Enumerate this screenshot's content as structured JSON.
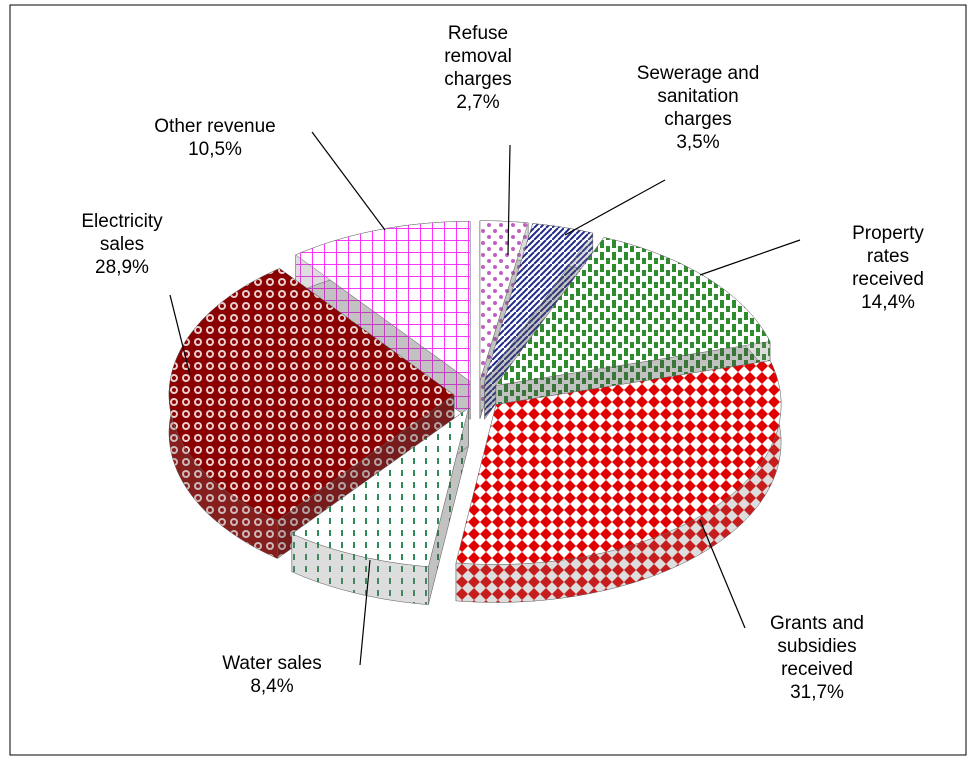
{
  "chart_data": {
    "type": "pie",
    "categories": [
      "Refuse\nremoval\ncharges",
      "Sewerage and\nsanitation\ncharges",
      "Property rates\nreceived",
      "Grants  and\nsubsidies\nreceived",
      "Water sales",
      "Electricity\nsales",
      "Other revenue"
    ],
    "values": [
      2.7,
      3.5,
      14.4,
      31.7,
      8.4,
      28.9,
      10.5
    ],
    "value_labels": [
      "2,7%",
      "3,5%",
      "14,4%",
      "31,7%",
      "8,4%",
      "28,9%",
      "10,5%"
    ],
    "colors": [
      "#c060c0",
      "#1f2a8c",
      "#2e8b2e",
      "#e00000",
      "#2e8b57",
      "#8b0000",
      "#ff33ff"
    ]
  }
}
